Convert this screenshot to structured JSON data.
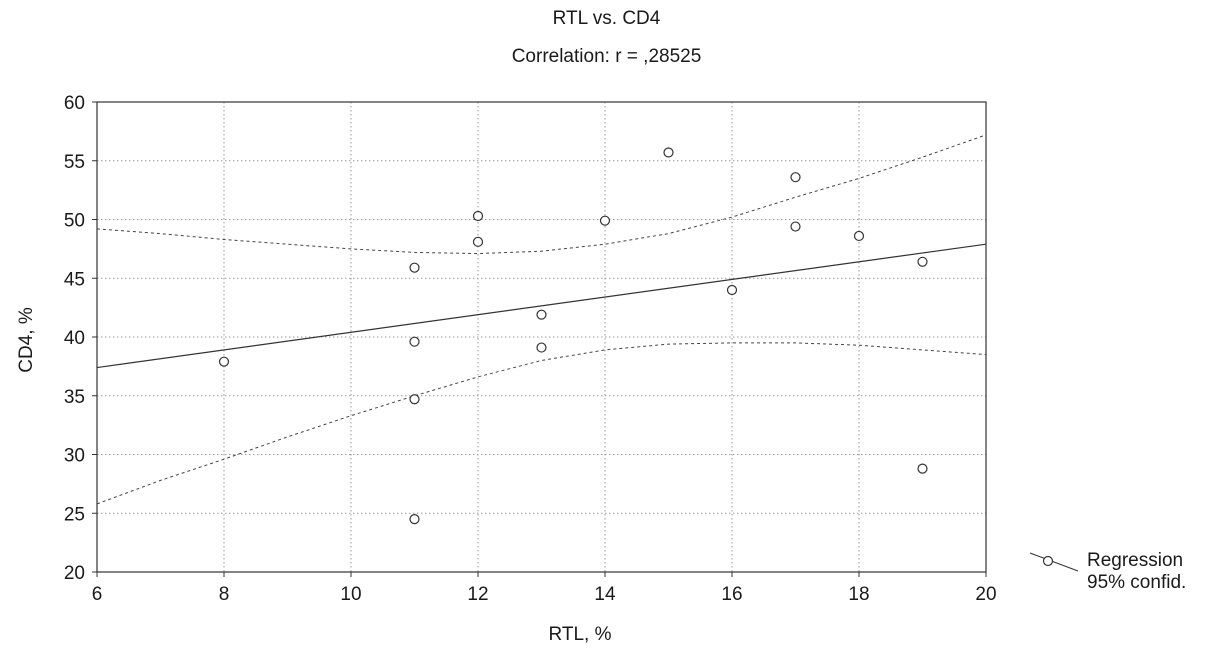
{
  "chart_data": {
    "type": "scatter",
    "title": "RTL vs. CD4",
    "subtitle": "Correlation: r = ,28525",
    "xlabel": "RTL, %",
    "ylabel": "CD4, %",
    "xlim": [
      6,
      20
    ],
    "ylim": [
      20,
      60
    ],
    "xticks": [
      6,
      8,
      10,
      12,
      14,
      16,
      18,
      20
    ],
    "yticks": [
      20,
      25,
      30,
      35,
      40,
      45,
      50,
      55,
      60
    ],
    "grid": true,
    "legend_position": "bottom-right",
    "legend": [
      "Regression",
      "95% confid."
    ],
    "points": [
      {
        "x": 8,
        "y": 37.9
      },
      {
        "x": 11,
        "y": 45.9
      },
      {
        "x": 11,
        "y": 39.6
      },
      {
        "x": 11,
        "y": 34.7
      },
      {
        "x": 11,
        "y": 24.5
      },
      {
        "x": 12,
        "y": 50.3
      },
      {
        "x": 12,
        "y": 48.1
      },
      {
        "x": 13,
        "y": 41.9
      },
      {
        "x": 13,
        "y": 39.1
      },
      {
        "x": 14,
        "y": 49.9
      },
      {
        "x": 15,
        "y": 55.7
      },
      {
        "x": 16,
        "y": 44.0
      },
      {
        "x": 17,
        "y": 53.6
      },
      {
        "x": 17,
        "y": 49.4
      },
      {
        "x": 18,
        "y": 48.6
      },
      {
        "x": 19,
        "y": 46.4
      },
      {
        "x": 19,
        "y": 28.8
      }
    ],
    "regression": {
      "x": [
        6,
        20
      ],
      "y": [
        37.4,
        47.9
      ]
    },
    "confidence_upper": {
      "x": [
        6,
        7,
        8,
        9,
        10,
        11,
        12,
        13,
        14,
        15,
        16,
        17,
        18,
        19,
        20
      ],
      "y": [
        49.2,
        48.8,
        48.3,
        47.9,
        47.5,
        47.2,
        47.1,
        47.3,
        47.9,
        48.8,
        50.2,
        51.9,
        53.5,
        55.3,
        57.2
      ]
    },
    "confidence_lower": {
      "x": [
        6,
        7,
        8,
        9,
        10,
        11,
        12,
        13,
        14,
        15,
        16,
        17,
        18,
        19,
        20
      ],
      "y": [
        25.8,
        27.8,
        29.6,
        31.5,
        33.3,
        35.0,
        36.6,
        38.0,
        38.9,
        39.4,
        39.5,
        39.5,
        39.3,
        38.9,
        38.5
      ]
    }
  }
}
